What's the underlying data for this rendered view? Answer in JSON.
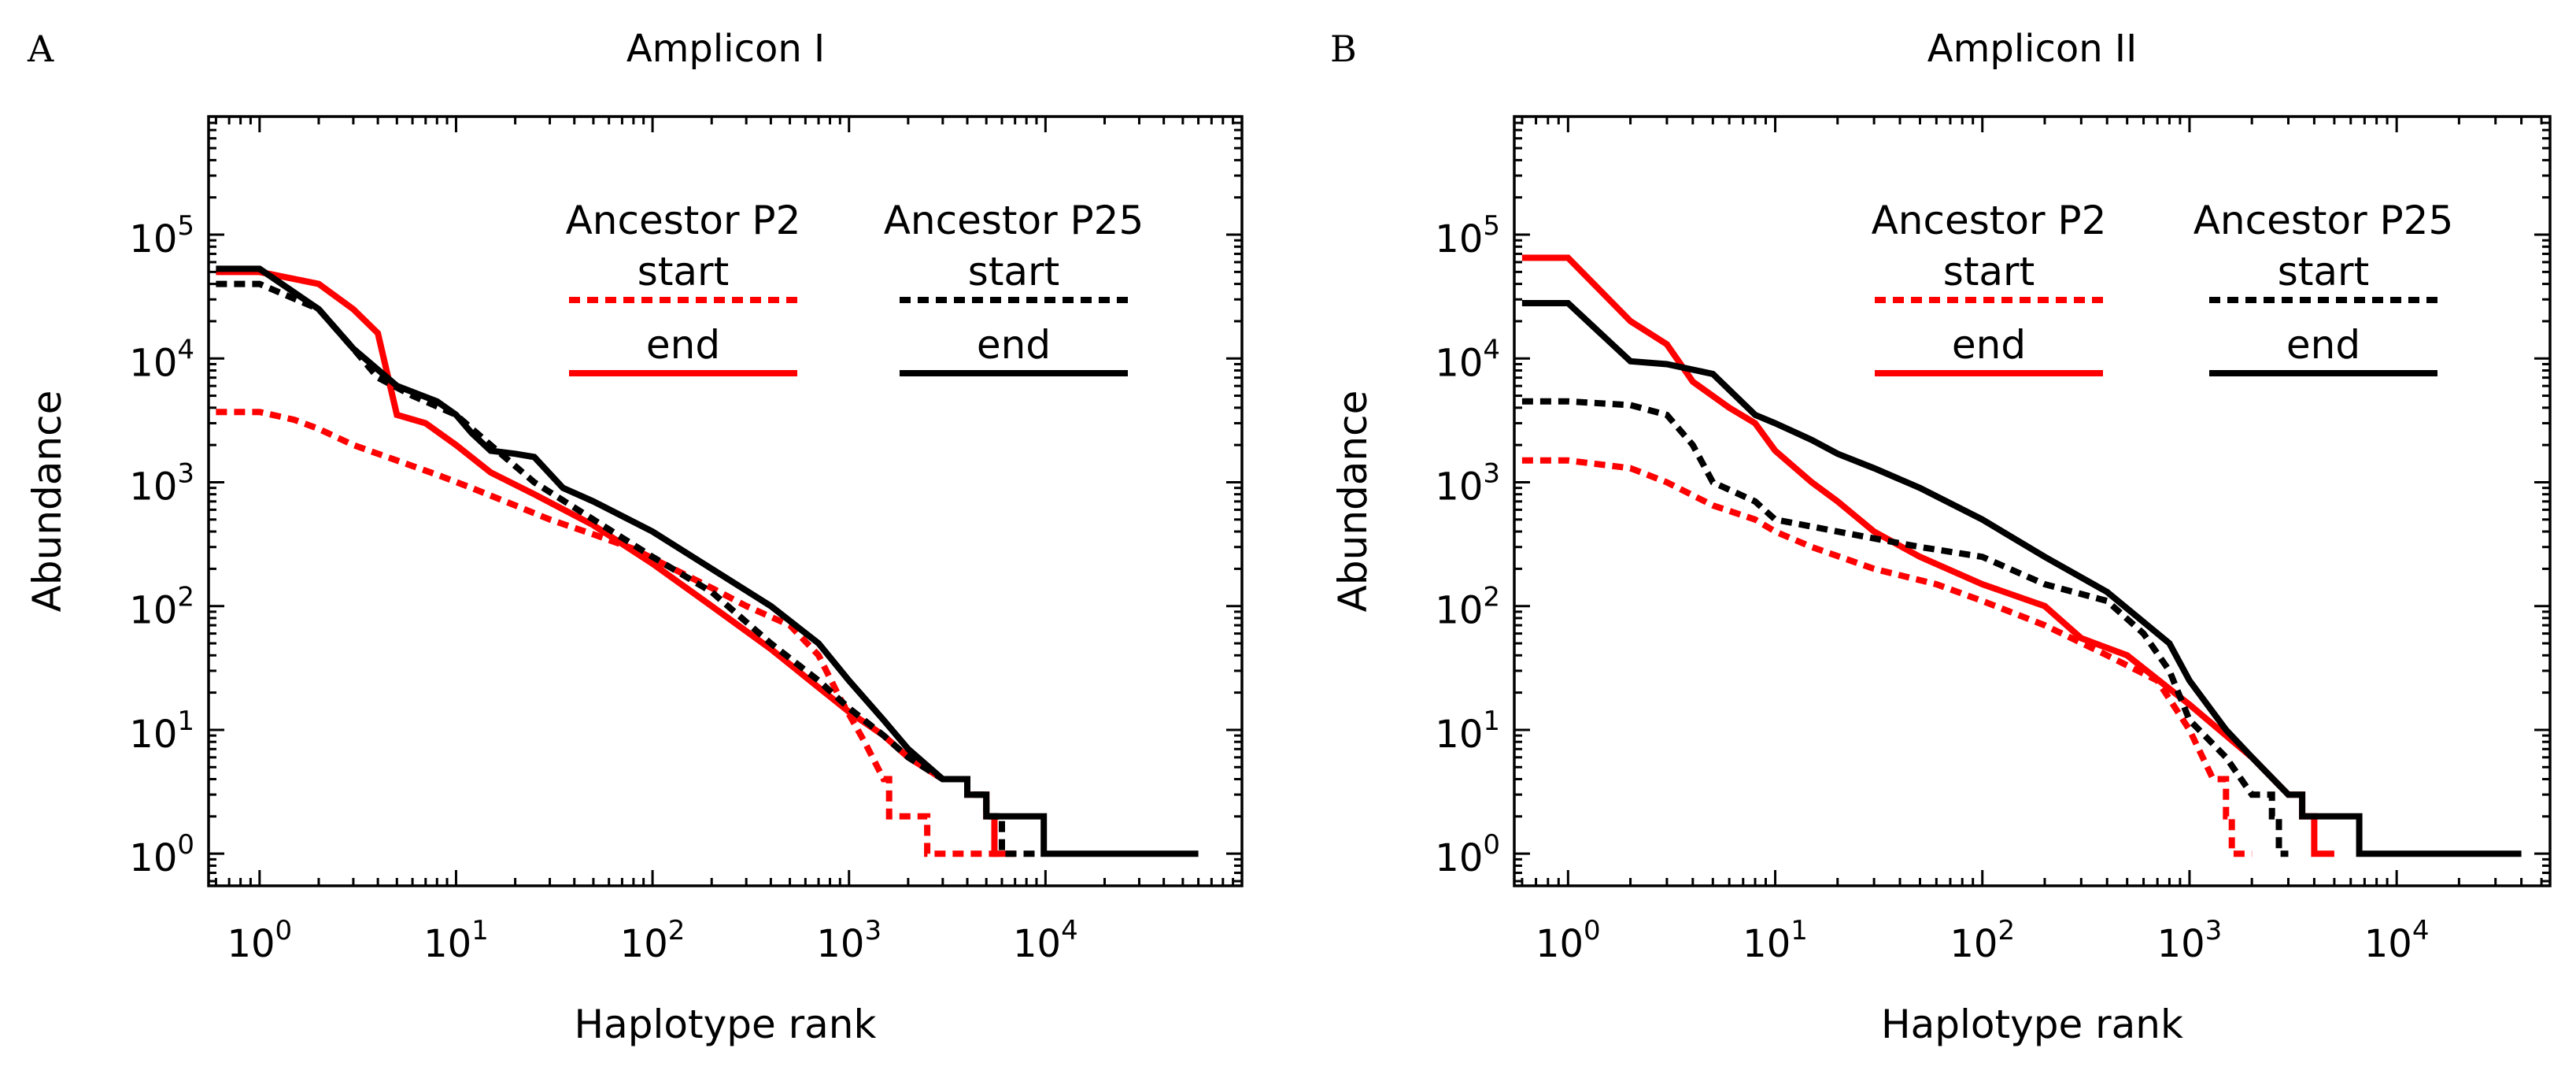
{
  "figure": {
    "colors": {
      "ancestor_p2": "#ff0000",
      "ancestor_p25": "#000000"
    }
  },
  "chart_data": [
    {
      "type": "line",
      "panel_label": "A",
      "title": "Amplicon I",
      "xlabel": "Haplotype rank",
      "ylabel": "Abundance",
      "x_scale": "log",
      "y_scale": "log",
      "xlim": [
        0.55,
        100000
      ],
      "ylim": [
        0.55,
        900000
      ],
      "x_ticks": [
        {
          "value": 1,
          "base": "10",
          "exp": "0"
        },
        {
          "value": 10,
          "base": "10",
          "exp": "1"
        },
        {
          "value": 100,
          "base": "10",
          "exp": "2"
        },
        {
          "value": 1000,
          "base": "10",
          "exp": "3"
        },
        {
          "value": 10000,
          "base": "10",
          "exp": "4"
        }
      ],
      "y_ticks": [
        {
          "value": 1,
          "base": "10",
          "exp": "0"
        },
        {
          "value": 10,
          "base": "10",
          "exp": "1"
        },
        {
          "value": 100,
          "base": "10",
          "exp": "2"
        },
        {
          "value": 1000,
          "base": "10",
          "exp": "3"
        },
        {
          "value": 10000,
          "base": "10",
          "exp": "4"
        },
        {
          "value": 100000,
          "base": "10",
          "exp": "5"
        }
      ],
      "legend": {
        "groups": [
          {
            "title": "Ancestor P2",
            "start_label": "start",
            "end_label": "end",
            "color": "#ff0000"
          },
          {
            "title": "Ancestor P25",
            "start_label": "start",
            "end_label": "end",
            "color": "#000000"
          }
        ]
      },
      "series": [
        {
          "name": "Ancestor P2 start",
          "style": "dotted",
          "color": "#ff0000",
          "points": [
            [
              0.6,
              3700
            ],
            [
              1,
              3700
            ],
            [
              1.5,
              3200
            ],
            [
              2,
              2700
            ],
            [
              3,
              2000
            ],
            [
              5,
              1500
            ],
            [
              8,
              1150
            ],
            [
              12,
              900
            ],
            [
              20,
              650
            ],
            [
              30,
              500
            ],
            [
              50,
              380
            ],
            [
              80,
              290
            ],
            [
              120,
              210
            ],
            [
              200,
              140
            ],
            [
              300,
              100
            ],
            [
              500,
              70
            ],
            [
              700,
              40
            ],
            [
              900,
              18
            ],
            [
              1200,
              8
            ],
            [
              1500,
              4
            ],
            [
              1600,
              2
            ],
            [
              2400,
              2
            ],
            [
              2500,
              1
            ],
            [
              5800,
              1
            ]
          ]
        },
        {
          "name": "Ancestor P2 end",
          "style": "solid",
          "color": "#ff0000",
          "points": [
            [
              0.6,
              50000
            ],
            [
              1,
              50000
            ],
            [
              2,
              40000
            ],
            [
              3,
              25000
            ],
            [
              4,
              16000
            ],
            [
              5,
              3500
            ],
            [
              7,
              3000
            ],
            [
              10,
              2000
            ],
            [
              15,
              1200
            ],
            [
              25,
              800
            ],
            [
              50,
              450
            ],
            [
              100,
              220
            ],
            [
              200,
              100
            ],
            [
              400,
              45
            ],
            [
              700,
              22
            ],
            [
              1000,
              14
            ],
            [
              1500,
              9
            ],
            [
              2000,
              6
            ],
            [
              3000,
              4
            ],
            [
              4000,
              3
            ],
            [
              5000,
              2
            ],
            [
              5500,
              1
            ],
            [
              7000,
              1
            ]
          ]
        },
        {
          "name": "Ancestor P25 start",
          "style": "dotted",
          "color": "#000000",
          "points": [
            [
              0.6,
              40000
            ],
            [
              1,
              40000
            ],
            [
              2,
              25000
            ],
            [
              3,
              12000
            ],
            [
              4,
              7000
            ],
            [
              6,
              5000
            ],
            [
              10,
              3500
            ],
            [
              15,
              2000
            ],
            [
              25,
              1000
            ],
            [
              50,
              500
            ],
            [
              100,
              250
            ],
            [
              200,
              130
            ],
            [
              400,
              50
            ],
            [
              700,
              25
            ],
            [
              1000,
              15
            ],
            [
              1500,
              9
            ],
            [
              2000,
              6
            ],
            [
              3000,
              4
            ],
            [
              4000,
              3
            ],
            [
              5000,
              2
            ],
            [
              6000,
              1
            ],
            [
              9000,
              1
            ]
          ]
        },
        {
          "name": "Ancestor P25 end",
          "style": "solid",
          "color": "#000000",
          "points": [
            [
              0.6,
              53000
            ],
            [
              1,
              53000
            ],
            [
              2,
              25000
            ],
            [
              3,
              12000
            ],
            [
              5,
              6000
            ],
            [
              8,
              4500
            ],
            [
              10,
              3500
            ],
            [
              12,
              2500
            ],
            [
              15,
              1800
            ],
            [
              20,
              1700
            ],
            [
              25,
              1600
            ],
            [
              35,
              900
            ],
            [
              50,
              700
            ],
            [
              100,
              400
            ],
            [
              200,
              200
            ],
            [
              400,
              100
            ],
            [
              700,
              50
            ],
            [
              1000,
              25
            ],
            [
              1500,
              12
            ],
            [
              2000,
              7
            ],
            [
              3000,
              4
            ],
            [
              4000,
              3
            ],
            [
              5000,
              2
            ],
            [
              8000,
              2
            ],
            [
              9800,
              1
            ],
            [
              60000,
              1
            ]
          ]
        }
      ]
    },
    {
      "type": "line",
      "panel_label": "B",
      "title": "Amplicon II",
      "xlabel": "Haplotype rank",
      "ylabel": "Abundance",
      "x_scale": "log",
      "y_scale": "log",
      "xlim": [
        0.55,
        55000
      ],
      "ylim": [
        0.55,
        900000
      ],
      "x_ticks": [
        {
          "value": 1,
          "base": "10",
          "exp": "0"
        },
        {
          "value": 10,
          "base": "10",
          "exp": "1"
        },
        {
          "value": 100,
          "base": "10",
          "exp": "2"
        },
        {
          "value": 1000,
          "base": "10",
          "exp": "3"
        },
        {
          "value": 10000,
          "base": "10",
          "exp": "4"
        }
      ],
      "y_ticks": [
        {
          "value": 1,
          "base": "10",
          "exp": "0"
        },
        {
          "value": 10,
          "base": "10",
          "exp": "1"
        },
        {
          "value": 100,
          "base": "10",
          "exp": "2"
        },
        {
          "value": 1000,
          "base": "10",
          "exp": "3"
        },
        {
          "value": 10000,
          "base": "10",
          "exp": "4"
        },
        {
          "value": 100000,
          "base": "10",
          "exp": "5"
        }
      ],
      "legend": {
        "groups": [
          {
            "title": "Ancestor P2",
            "start_label": "start",
            "end_label": "end",
            "color": "#ff0000"
          },
          {
            "title": "Ancestor P25",
            "start_label": "start",
            "end_label": "end",
            "color": "#000000"
          }
        ]
      },
      "series": [
        {
          "name": "Ancestor P2 start",
          "style": "dotted",
          "color": "#ff0000",
          "points": [
            [
              0.6,
              1500
            ],
            [
              1,
              1500
            ],
            [
              2,
              1300
            ],
            [
              3,
              1000
            ],
            [
              5,
              650
            ],
            [
              8,
              500
            ],
            [
              10,
              400
            ],
            [
              15,
              300
            ],
            [
              30,
              200
            ],
            [
              60,
              150
            ],
            [
              100,
              110
            ],
            [
              200,
              70
            ],
            [
              400,
              40
            ],
            [
              700,
              25
            ],
            [
              1000,
              10
            ],
            [
              1300,
              4
            ],
            [
              1500,
              2
            ],
            [
              1600,
              1
            ],
            [
              2000,
              1
            ]
          ]
        },
        {
          "name": "Ancestor P2 end",
          "style": "solid",
          "color": "#ff0000",
          "points": [
            [
              0.6,
              65000
            ],
            [
              1,
              65000
            ],
            [
              2,
              20000
            ],
            [
              3,
              13000
            ],
            [
              4,
              6500
            ],
            [
              6,
              4000
            ],
            [
              8,
              3000
            ],
            [
              10,
              1800
            ],
            [
              15,
              1000
            ],
            [
              20,
              700
            ],
            [
              30,
              400
            ],
            [
              50,
              250
            ],
            [
              100,
              150
            ],
            [
              200,
              100
            ],
            [
              300,
              55
            ],
            [
              500,
              40
            ],
            [
              1000,
              16
            ],
            [
              2000,
              6
            ],
            [
              3000,
              3
            ],
            [
              3500,
              2
            ],
            [
              4000,
              1
            ],
            [
              5000,
              1
            ]
          ]
        },
        {
          "name": "Ancestor P25 start",
          "style": "dotted",
          "color": "#000000",
          "points": [
            [
              0.6,
              4500
            ],
            [
              1,
              4500
            ],
            [
              2,
              4200
            ],
            [
              3,
              3500
            ],
            [
              4,
              2000
            ],
            [
              5,
              1000
            ],
            [
              8,
              700
            ],
            [
              10,
              500
            ],
            [
              20,
              400
            ],
            [
              50,
              300
            ],
            [
              100,
              250
            ],
            [
              200,
              150
            ],
            [
              400,
              110
            ],
            [
              600,
              60
            ],
            [
              800,
              30
            ],
            [
              1000,
              12
            ],
            [
              1500,
              6
            ],
            [
              2000,
              3
            ],
            [
              2500,
              2
            ],
            [
              2700,
              1
            ],
            [
              3000,
              1
            ]
          ]
        },
        {
          "name": "Ancestor P25 end",
          "style": "solid",
          "color": "#000000",
          "points": [
            [
              0.6,
              28000
            ],
            [
              1,
              28000
            ],
            [
              2,
              9500
            ],
            [
              3,
              9000
            ],
            [
              5,
              7500
            ],
            [
              8,
              3500
            ],
            [
              10,
              3000
            ],
            [
              15,
              2200
            ],
            [
              20,
              1700
            ],
            [
              30,
              1300
            ],
            [
              50,
              900
            ],
            [
              100,
              500
            ],
            [
              200,
              250
            ],
            [
              400,
              130
            ],
            [
              800,
              50
            ],
            [
              1000,
              25
            ],
            [
              1500,
              10
            ],
            [
              2000,
              6
            ],
            [
              3000,
              3
            ],
            [
              3500,
              2
            ],
            [
              6000,
              2
            ],
            [
              6600,
              1
            ],
            [
              40000,
              1
            ]
          ]
        }
      ]
    }
  ]
}
